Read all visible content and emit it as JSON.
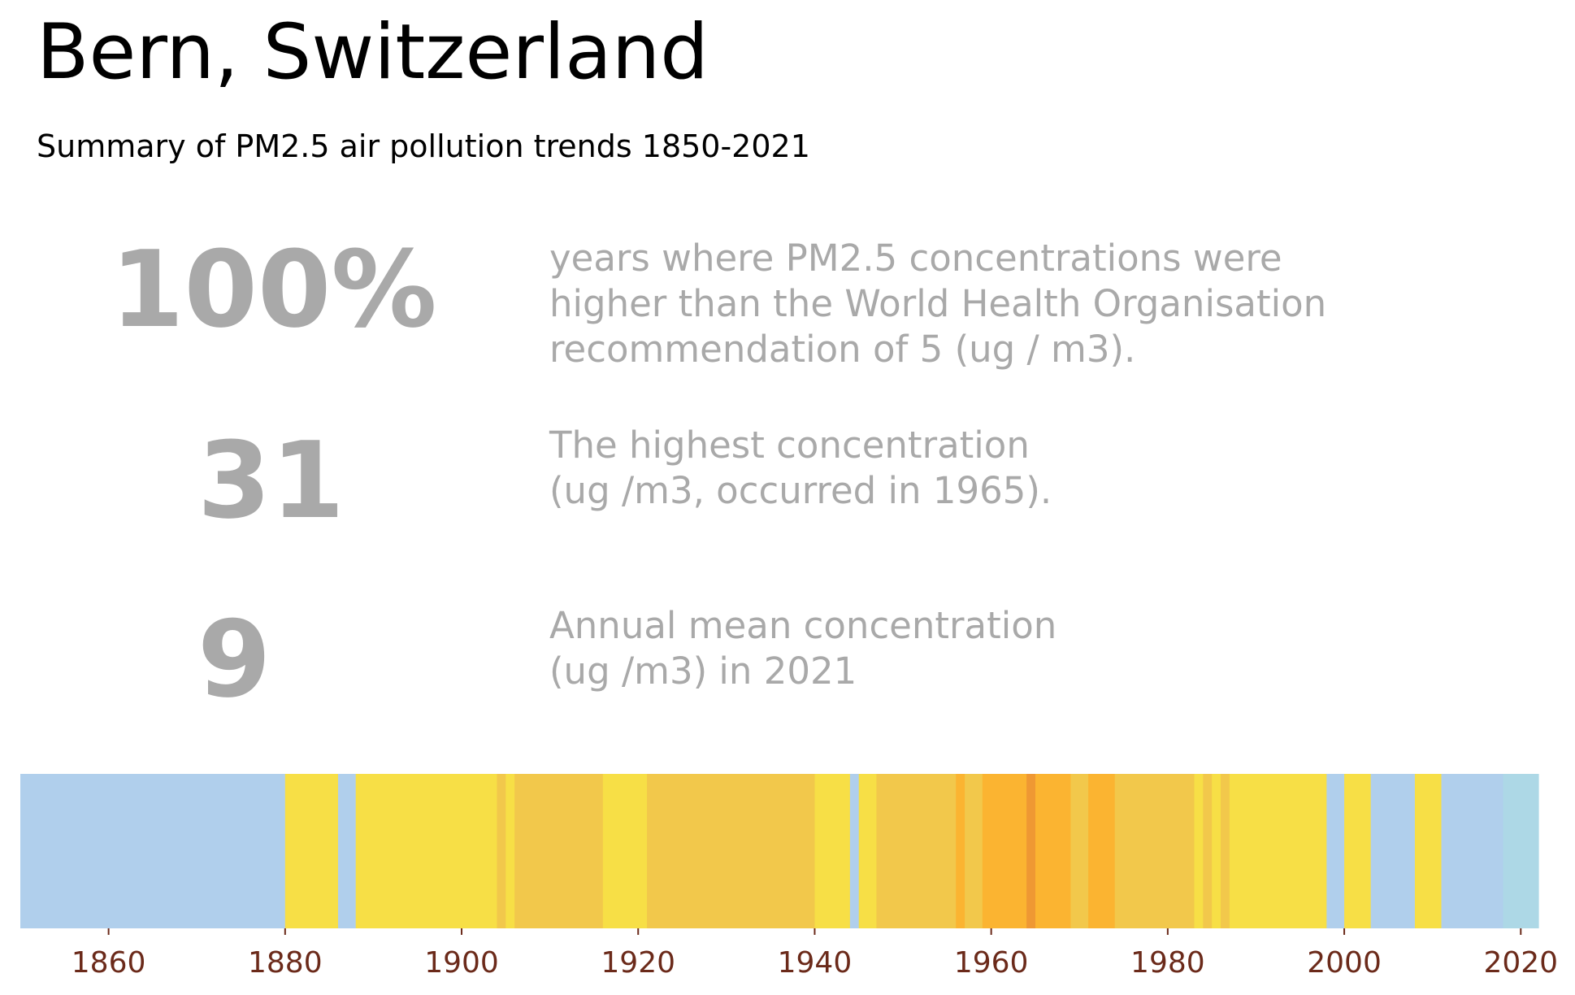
{
  "header": {
    "title": "Bern, Switzerland",
    "subtitle": "Summary of PM2.5 air pollution trends 1850-2021"
  },
  "stats": [
    {
      "value": "100%",
      "description": "years where PM2.5 concentrations were\nhigher than the World Health Organisation\nrecommendation of 5 (ug / m3)."
    },
    {
      "value": "31",
      "description": "The highest concentration\n(ug /m3, occurred in 1965)."
    },
    {
      "value": "9",
      "description": "Annual mean concentration\n(ug /m3) in 2021"
    }
  ],
  "colors": {
    "stat_text": "#a9a9a9",
    "tick_label": "#6b2a1a"
  },
  "chart_data": {
    "type": "heatmap",
    "x_range": [
      1850,
      2022
    ],
    "x_ticks": [
      "1860",
      "1880",
      "1900",
      "1920",
      "1940",
      "1960",
      "1980",
      "2000",
      "2020"
    ],
    "segments": [
      {
        "start": 1850,
        "end": 1880,
        "color": "#b0cfec"
      },
      {
        "start": 1880,
        "end": 1886,
        "color": "#f7df46"
      },
      {
        "start": 1886,
        "end": 1888,
        "color": "#b0cfec"
      },
      {
        "start": 1888,
        "end": 1904,
        "color": "#f7df46"
      },
      {
        "start": 1904,
        "end": 1905,
        "color": "#f2c84b"
      },
      {
        "start": 1905,
        "end": 1906,
        "color": "#f7df46"
      },
      {
        "start": 1906,
        "end": 1916,
        "color": "#f2c84b"
      },
      {
        "start": 1916,
        "end": 1921,
        "color": "#f7df46"
      },
      {
        "start": 1921,
        "end": 1940,
        "color": "#f2c84b"
      },
      {
        "start": 1940,
        "end": 1944,
        "color": "#f7df46"
      },
      {
        "start": 1944,
        "end": 1945,
        "color": "#b0cfec"
      },
      {
        "start": 1945,
        "end": 1947,
        "color": "#f7df46"
      },
      {
        "start": 1947,
        "end": 1956,
        "color": "#f2c84b"
      },
      {
        "start": 1956,
        "end": 1957,
        "color": "#fbb431"
      },
      {
        "start": 1957,
        "end": 1959,
        "color": "#f2c84b"
      },
      {
        "start": 1959,
        "end": 1964,
        "color": "#fbb431"
      },
      {
        "start": 1964,
        "end": 1965,
        "color": "#ef9833"
      },
      {
        "start": 1965,
        "end": 1969,
        "color": "#fbb431"
      },
      {
        "start": 1969,
        "end": 1971,
        "color": "#f2c84b"
      },
      {
        "start": 1971,
        "end": 1974,
        "color": "#fbb431"
      },
      {
        "start": 1974,
        "end": 1983,
        "color": "#f2c84b"
      },
      {
        "start": 1983,
        "end": 1984,
        "color": "#f7df46"
      },
      {
        "start": 1984,
        "end": 1985,
        "color": "#f2c84b"
      },
      {
        "start": 1985,
        "end": 1986,
        "color": "#f7df46"
      },
      {
        "start": 1986,
        "end": 1987,
        "color": "#f2c84b"
      },
      {
        "start": 1987,
        "end": 1998,
        "color": "#f7df46"
      },
      {
        "start": 1998,
        "end": 2000,
        "color": "#b0cfec"
      },
      {
        "start": 2000,
        "end": 2003,
        "color": "#f7df46"
      },
      {
        "start": 2003,
        "end": 2008,
        "color": "#b0cfec"
      },
      {
        "start": 2008,
        "end": 2011,
        "color": "#f7df46"
      },
      {
        "start": 2011,
        "end": 2018,
        "color": "#b0cfec"
      },
      {
        "start": 2018,
        "end": 2022,
        "color": "#add8e6"
      }
    ]
  }
}
